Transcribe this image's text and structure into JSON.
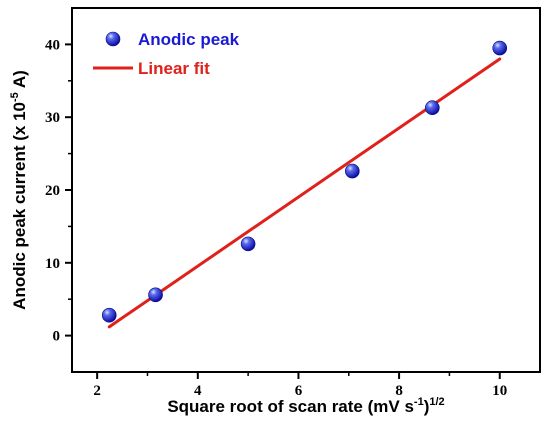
{
  "chart_data": {
    "type": "scatter",
    "xlabel": {
      "prefix": "Square root of scan rate (mV s",
      "sup1": "-1",
      "mid": ")",
      "sup2": "1/2"
    },
    "ylabel": {
      "prefix": "Anodic peak current (x 10",
      "sup": "-5",
      "suffix": " A)"
    },
    "xlim": [
      1.5,
      10.8
    ],
    "ylim": [
      -5,
      45
    ],
    "xticks": [
      2,
      4,
      6,
      8,
      10
    ],
    "xtick_labels": [
      "2",
      "4",
      "6",
      "8",
      "10"
    ],
    "yticks": [
      0,
      10,
      20,
      30,
      40
    ],
    "ytick_labels": [
      "0",
      "10",
      "20",
      "30",
      "40"
    ],
    "grid": false,
    "legend_position": "top-left",
    "series": [
      {
        "name": "Anodic peak",
        "kind": "scatter",
        "color": "#1a1ad6",
        "x": [
          2.24,
          3.16,
          5.0,
          7.07,
          8.66,
          10.0
        ],
        "y": [
          2.8,
          5.6,
          12.6,
          22.6,
          31.3,
          39.5
        ]
      },
      {
        "name": "Linear fit",
        "kind": "line",
        "color": "#e0201a",
        "x": [
          2.24,
          10.0
        ],
        "y": [
          1.2,
          38.0
        ]
      }
    ]
  }
}
